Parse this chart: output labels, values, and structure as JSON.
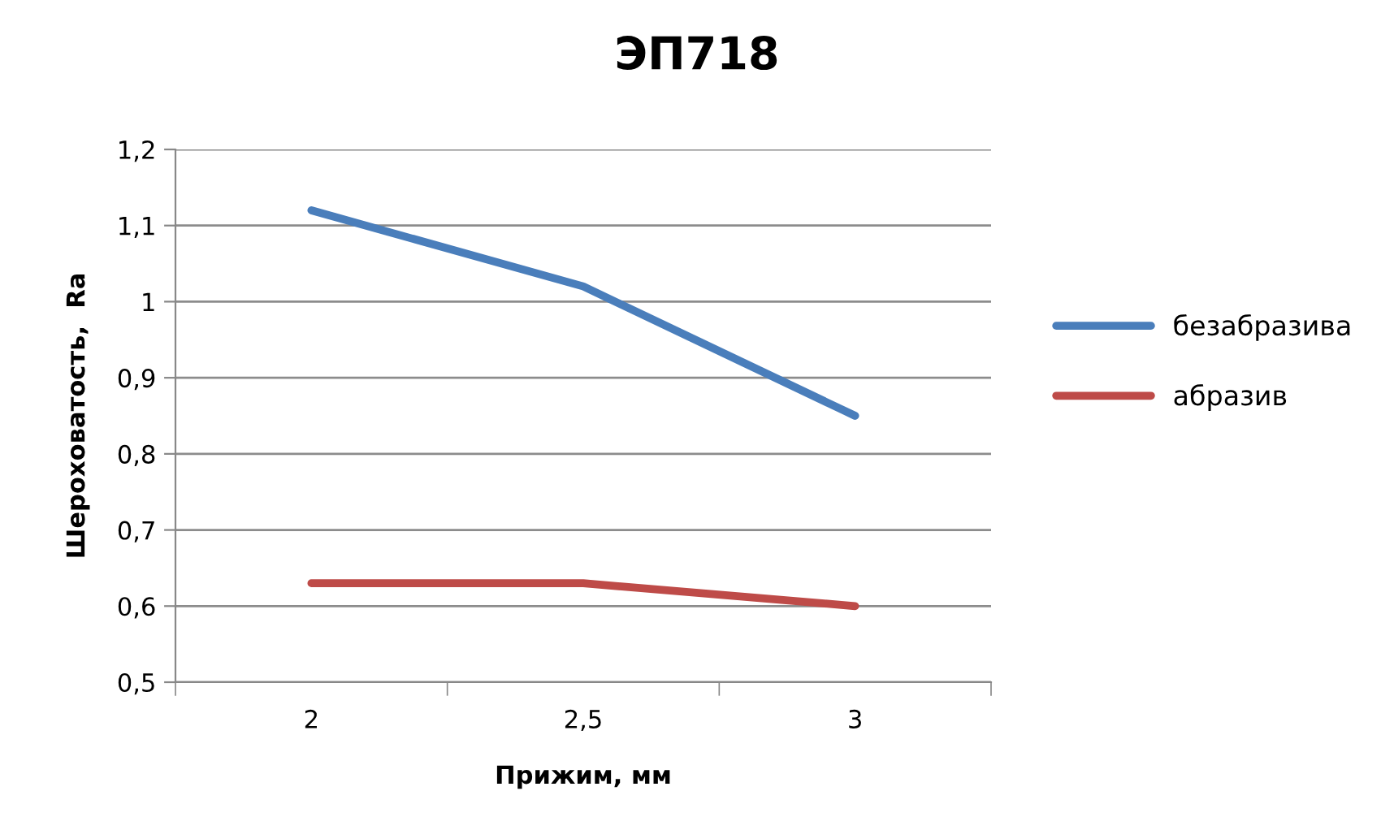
{
  "chart_data": {
    "type": "line",
    "title": "ЭП718",
    "xlabel": "Прижим, мм",
    "ylabel": "Шероховатость,  Ra",
    "categories": [
      "2",
      "2,5",
      "3"
    ],
    "series": [
      {
        "name": "безабразива",
        "color": "#4a7ebb",
        "values": [
          1.12,
          1.02,
          0.85
        ]
      },
      {
        "name": "абразив",
        "color": "#be4b48",
        "values": [
          0.63,
          0.63,
          0.6
        ]
      }
    ],
    "ylim": [
      0.5,
      1.2
    ],
    "yticks": [
      {
        "value": 0.5,
        "label": "0,5"
      },
      {
        "value": 0.6,
        "label": "0,6"
      },
      {
        "value": 0.7,
        "label": "0,7"
      },
      {
        "value": 0.8,
        "label": "0,8"
      },
      {
        "value": 0.9,
        "label": "0,9"
      },
      {
        "value": 1,
        "label": "1"
      },
      {
        "value": 1.1,
        "label": "1,1"
      },
      {
        "value": 1.2,
        "label": "1,2"
      }
    ],
    "grid": "y",
    "legend": "right",
    "marker": "none",
    "line_style": "solid"
  }
}
